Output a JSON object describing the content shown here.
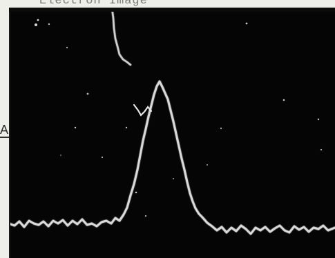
{
  "caption": "Electron Image",
  "side_marker": "A",
  "colors": {
    "paper": "#efefea",
    "screen": "#050505",
    "trace": "#d9d9d9"
  }
}
